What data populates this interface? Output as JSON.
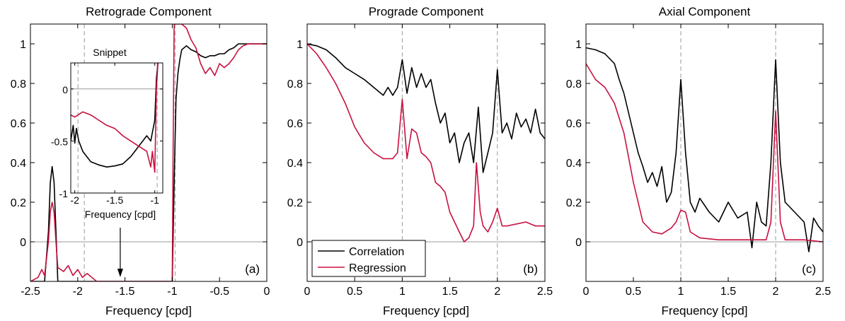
{
  "colors": {
    "correlation": "#000000",
    "regression": "#c8103f",
    "zero_line": "#999999",
    "marker_line": "#999999"
  },
  "legend": {
    "items": [
      {
        "label": "Correlation",
        "color": "#000000"
      },
      {
        "label": "Regression",
        "color": "#c8103f"
      }
    ]
  },
  "chart_data": [
    {
      "type": "line",
      "title": "Retrograde Component",
      "panel_label": "(a)",
      "xlabel": "Frequency [cpd]",
      "ylabel": "",
      "xlim": [
        -2.5,
        0
      ],
      "ylim": [
        -0.2,
        1.1
      ],
      "xticks": [
        -2.5,
        -2,
        -1.5,
        -1,
        -0.5,
        0
      ],
      "xtick_labels": [
        "-2.5",
        "-2",
        "-1.5",
        "-1",
        "-0.5",
        "0"
      ],
      "yticks": [
        0,
        0.2,
        0.4,
        0.6,
        0.8,
        1
      ],
      "ytick_labels": [
        "0",
        "0.2",
        "0.4",
        "0.6",
        "0.8",
        "1"
      ],
      "vlines": [
        -1.93,
        -0.97
      ],
      "arrow_at_x": -1.55,
      "series": [
        {
          "name": "Correlation",
          "x": [
            -2.5,
            -2.35,
            -2.31,
            -2.29,
            -2.27,
            -2.25,
            -2.23,
            -2.21,
            -2.15,
            -1.95,
            -1.5,
            -1.0,
            -0.98,
            -0.96,
            -0.94,
            -0.92,
            -0.9,
            -0.85,
            -0.8,
            -0.75,
            -0.7,
            -0.65,
            -0.6,
            -0.55,
            -0.5,
            -0.45,
            -0.4,
            -0.35,
            -0.3,
            -0.25,
            -0.2,
            -0.1,
            0.0
          ],
          "y": [
            -0.2,
            -0.2,
            0.05,
            0.3,
            0.38,
            0.3,
            0.05,
            -0.2,
            -0.2,
            -0.2,
            -0.2,
            -0.2,
            0.3,
            0.72,
            0.85,
            0.92,
            0.97,
            0.99,
            0.97,
            0.96,
            0.94,
            0.93,
            0.94,
            0.94,
            0.95,
            0.95,
            0.97,
            0.98,
            1.0,
            1.0,
            1.0,
            1.0,
            1.0
          ]
        },
        {
          "name": "Regression",
          "x": [
            -2.5,
            -2.42,
            -2.38,
            -2.35,
            -2.31,
            -2.29,
            -2.27,
            -2.25,
            -2.23,
            -2.21,
            -2.15,
            -2.1,
            -2.05,
            -2.0,
            -1.95,
            -1.9,
            -1.8,
            -1.5,
            -1.0,
            -0.99,
            -0.98,
            -0.97,
            -0.95,
            -0.9,
            -0.85,
            -0.8,
            -0.75,
            -0.7,
            -0.65,
            -0.6,
            -0.55,
            -0.5,
            -0.45,
            -0.4,
            -0.35,
            -0.3,
            -0.25,
            -0.2,
            -0.1,
            0.0
          ],
          "y": [
            -0.2,
            -0.18,
            -0.14,
            -0.17,
            0.0,
            0.15,
            0.2,
            0.15,
            0.0,
            -0.13,
            -0.15,
            -0.12,
            -0.17,
            -0.14,
            -0.18,
            -0.16,
            -0.2,
            -0.2,
            -0.2,
            0.5,
            1.1,
            1.1,
            1.1,
            1.1,
            1.08,
            1.02,
            0.98,
            0.9,
            0.85,
            0.88,
            0.84,
            0.9,
            0.88,
            0.9,
            0.93,
            0.97,
            0.99,
            1.0,
            1.0,
            1.0
          ]
        }
      ],
      "inset": {
        "title": "Snippet",
        "xlabel": "Frequency [cpd]",
        "xlim": [
          -2.05,
          -0.9
        ],
        "ylim": [
          -1,
          0.25
        ],
        "xticks": [
          -2,
          -1.5,
          -1
        ],
        "xtick_labels": [
          "-2",
          "-1.5",
          "-1"
        ],
        "yticks": [
          -1,
          -0.5,
          0
        ],
        "ytick_labels": [
          "-1",
          "-0.5",
          "0"
        ],
        "vlines": [
          -1.96,
          -0.97
        ],
        "series": [
          {
            "name": "Correlation",
            "x": [
              -2.05,
              -2.02,
              -2.0,
              -1.98,
              -1.95,
              -1.9,
              -1.85,
              -1.8,
              -1.7,
              -1.6,
              -1.5,
              -1.4,
              -1.3,
              -1.2,
              -1.1,
              -1.05,
              -1.0,
              -0.98,
              -0.96
            ],
            "y": [
              -0.5,
              -0.35,
              -0.52,
              -0.38,
              -0.5,
              -0.6,
              -0.65,
              -0.7,
              -0.73,
              -0.75,
              -0.74,
              -0.72,
              -0.65,
              -0.55,
              -0.45,
              -0.5,
              -0.3,
              0.1,
              0.25
            ]
          },
          {
            "name": "Regression",
            "x": [
              -2.05,
              -2.0,
              -1.9,
              -1.8,
              -1.7,
              -1.6,
              -1.5,
              -1.4,
              -1.3,
              -1.2,
              -1.1,
              -1.05,
              -1.03,
              -1.0,
              -0.98,
              -0.96
            ],
            "y": [
              -0.25,
              -0.27,
              -0.22,
              -0.25,
              -0.3,
              -0.35,
              -0.38,
              -0.45,
              -0.5,
              -0.55,
              -0.6,
              -0.75,
              -0.6,
              -0.8,
              0.0,
              0.25
            ]
          }
        ]
      }
    },
    {
      "type": "line",
      "title": "Prograde Component",
      "panel_label": "(b)",
      "xlabel": "Frequency [cpd]",
      "ylabel": "",
      "xlim": [
        0,
        2.5
      ],
      "ylim": [
        -0.2,
        1.1
      ],
      "xticks": [
        0,
        0.5,
        1,
        1.5,
        2,
        2.5
      ],
      "xtick_labels": [
        "0",
        "0.5",
        "1",
        "1.5",
        "2",
        "2.5"
      ],
      "yticks": [
        0,
        0.2,
        0.4,
        0.6,
        0.8,
        1
      ],
      "ytick_labels": [
        "0",
        "0.2",
        "0.4",
        "0.6",
        "0.8",
        "1"
      ],
      "vlines": [
        1,
        2
      ],
      "legend_position": "bottom-left",
      "series": [
        {
          "name": "Correlation",
          "x": [
            0,
            0.1,
            0.2,
            0.3,
            0.4,
            0.5,
            0.6,
            0.7,
            0.8,
            0.85,
            0.9,
            0.95,
            1.0,
            1.05,
            1.1,
            1.15,
            1.2,
            1.25,
            1.3,
            1.35,
            1.4,
            1.45,
            1.5,
            1.55,
            1.6,
            1.65,
            1.7,
            1.75,
            1.8,
            1.85,
            1.9,
            1.95,
            2.0,
            2.05,
            2.1,
            2.15,
            2.2,
            2.25,
            2.3,
            2.35,
            2.4,
            2.45,
            2.5
          ],
          "y": [
            1.0,
            0.99,
            0.97,
            0.93,
            0.88,
            0.85,
            0.82,
            0.78,
            0.74,
            0.78,
            0.74,
            0.78,
            0.92,
            0.75,
            0.88,
            0.78,
            0.85,
            0.78,
            0.82,
            0.7,
            0.6,
            0.65,
            0.5,
            0.55,
            0.4,
            0.5,
            0.55,
            0.4,
            0.68,
            0.35,
            0.45,
            0.55,
            0.87,
            0.55,
            0.6,
            0.52,
            0.65,
            0.58,
            0.62,
            0.55,
            0.67,
            0.55,
            0.52
          ]
        },
        {
          "name": "Regression",
          "x": [
            0,
            0.1,
            0.2,
            0.3,
            0.4,
            0.5,
            0.6,
            0.7,
            0.8,
            0.85,
            0.9,
            0.95,
            1.0,
            1.05,
            1.1,
            1.15,
            1.2,
            1.25,
            1.3,
            1.35,
            1.4,
            1.45,
            1.5,
            1.55,
            1.6,
            1.65,
            1.7,
            1.75,
            1.78,
            1.82,
            1.85,
            1.9,
            1.95,
            2.0,
            2.05,
            2.1,
            2.2,
            2.3,
            2.4,
            2.5
          ],
          "y": [
            1.0,
            0.95,
            0.88,
            0.8,
            0.7,
            0.58,
            0.5,
            0.45,
            0.42,
            0.42,
            0.42,
            0.45,
            0.72,
            0.42,
            0.57,
            0.55,
            0.45,
            0.43,
            0.4,
            0.3,
            0.28,
            0.25,
            0.15,
            0.1,
            0.05,
            0.0,
            0.02,
            0.08,
            0.4,
            0.15,
            0.08,
            0.05,
            0.1,
            0.17,
            0.08,
            0.08,
            0.09,
            0.1,
            0.08,
            0.08
          ]
        }
      ]
    },
    {
      "type": "line",
      "title": "Axial Component",
      "panel_label": "(c)",
      "xlabel": "Frequency [cpd]",
      "ylabel": "",
      "xlim": [
        0,
        2.5
      ],
      "ylim": [
        -0.2,
        1.1
      ],
      "xticks": [
        0,
        0.5,
        1,
        1.5,
        2,
        2.5
      ],
      "xtick_labels": [
        "0",
        "0.5",
        "1",
        "1.5",
        "2",
        "2.5"
      ],
      "yticks": [
        0,
        0.2,
        0.4,
        0.6,
        0.8,
        1
      ],
      "ytick_labels": [
        "0",
        "0.2",
        "0.4",
        "0.6",
        "0.8",
        "1"
      ],
      "vlines": [
        1,
        2
      ],
      "series": [
        {
          "name": "Correlation",
          "x": [
            0,
            0.1,
            0.2,
            0.3,
            0.35,
            0.4,
            0.45,
            0.5,
            0.55,
            0.6,
            0.65,
            0.7,
            0.75,
            0.8,
            0.85,
            0.9,
            0.95,
            1.0,
            1.05,
            1.1,
            1.15,
            1.2,
            1.3,
            1.4,
            1.5,
            1.6,
            1.7,
            1.75,
            1.8,
            1.85,
            1.9,
            1.95,
            2.0,
            2.05,
            2.1,
            2.2,
            2.3,
            2.35,
            2.4,
            2.45,
            2.5
          ],
          "y": [
            0.98,
            0.97,
            0.95,
            0.9,
            0.82,
            0.75,
            0.65,
            0.55,
            0.45,
            0.38,
            0.3,
            0.35,
            0.28,
            0.38,
            0.2,
            0.25,
            0.45,
            0.82,
            0.45,
            0.2,
            0.15,
            0.22,
            0.15,
            0.1,
            0.2,
            0.12,
            0.15,
            -0.03,
            0.2,
            0.1,
            0.08,
            0.4,
            0.92,
            0.4,
            0.2,
            0.15,
            0.1,
            -0.05,
            0.12,
            0.08,
            0.05
          ]
        },
        {
          "name": "Regression",
          "x": [
            0,
            0.1,
            0.2,
            0.3,
            0.4,
            0.5,
            0.6,
            0.7,
            0.8,
            0.9,
            0.95,
            1.0,
            1.05,
            1.1,
            1.2,
            1.4,
            1.6,
            1.8,
            1.9,
            1.95,
            2.0,
            2.05,
            2.1,
            2.3,
            2.5
          ],
          "y": [
            0.9,
            0.82,
            0.78,
            0.7,
            0.55,
            0.3,
            0.1,
            0.05,
            0.04,
            0.07,
            0.1,
            0.16,
            0.15,
            0.05,
            0.02,
            0.01,
            0.01,
            0.01,
            0.01,
            0.1,
            0.66,
            0.1,
            0.01,
            0.01,
            0.0
          ]
        }
      ]
    }
  ]
}
